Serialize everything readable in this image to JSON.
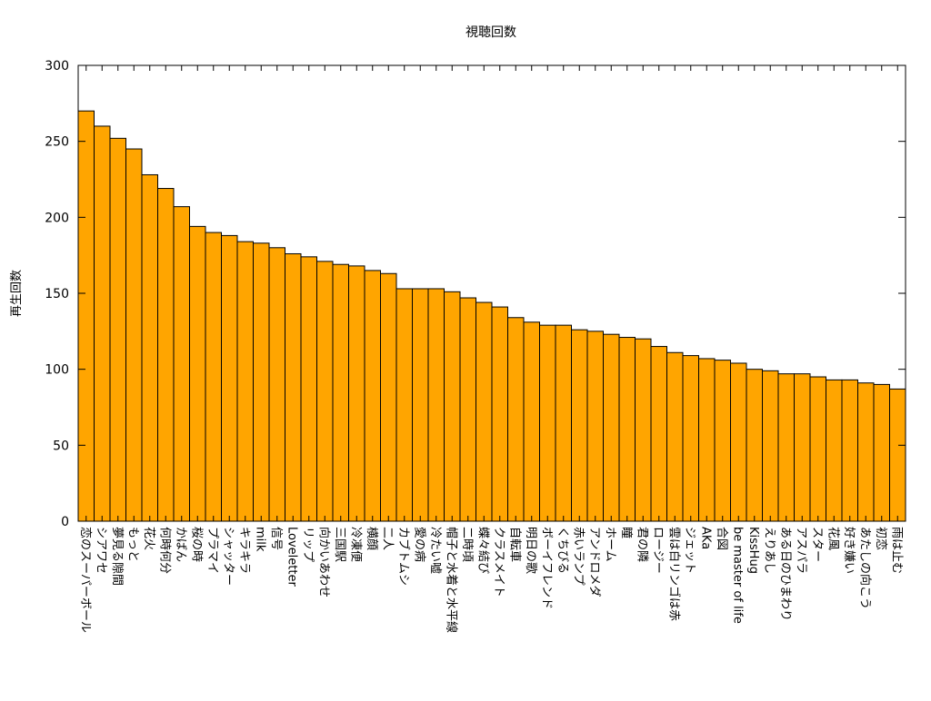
{
  "chart_data": {
    "type": "bar",
    "title": "視聴回数",
    "xlabel": "",
    "ylabel": "再生回数",
    "ylim": [
      0,
      300
    ],
    "yticks": [
      0,
      50,
      100,
      150,
      200,
      250,
      300
    ],
    "grid": false,
    "legend": "none",
    "bar_color": "#ffa500",
    "bar_edge_color": "#000000",
    "categories": [
      "恋のスーパーボール",
      "シアワセ",
      "夢見る隙間",
      "もっと",
      "花火",
      "何時何分",
      "かばん",
      "桜の時",
      "プラマイ",
      "シャッター",
      "キラキラ",
      "milk",
      "信号",
      "Loveletter",
      "リップ",
      "向かいあわせ",
      "三国駅",
      "冷凍便",
      "横顔",
      "二人",
      "カブトムシ",
      "愛の病",
      "冷たい嘘",
      "帽子と水着と水平線",
      "二時頃",
      "蝶々結び",
      "クラスメイト",
      "自転車",
      "明日の歌",
      "ボーイフレンド",
      "くちびる",
      "赤いランプ",
      "アンドロメダ",
      "ホーム",
      "瞳",
      "君の隣",
      "ロージー",
      "雲は白リンゴは赤",
      "ジェット",
      "AKa",
      "合図",
      "be master of life",
      "KissHug",
      "えりあし",
      "ある日のひまわり",
      "アスパラ",
      "スター",
      "花風",
      "好き嫌い",
      "あたしの向こう",
      "初恋",
      "雨は止む"
    ],
    "values": [
      270,
      260,
      252,
      245,
      228,
      219,
      207,
      194,
      190,
      188,
      184,
      183,
      180,
      176,
      174,
      171,
      169,
      168,
      165,
      163,
      153,
      153,
      153,
      151,
      147,
      144,
      141,
      134,
      131,
      129,
      129,
      126,
      125,
      123,
      121,
      120,
      115,
      111,
      109,
      107,
      106,
      104,
      100,
      99,
      97,
      97,
      95,
      93,
      93,
      91,
      90,
      87
    ]
  }
}
